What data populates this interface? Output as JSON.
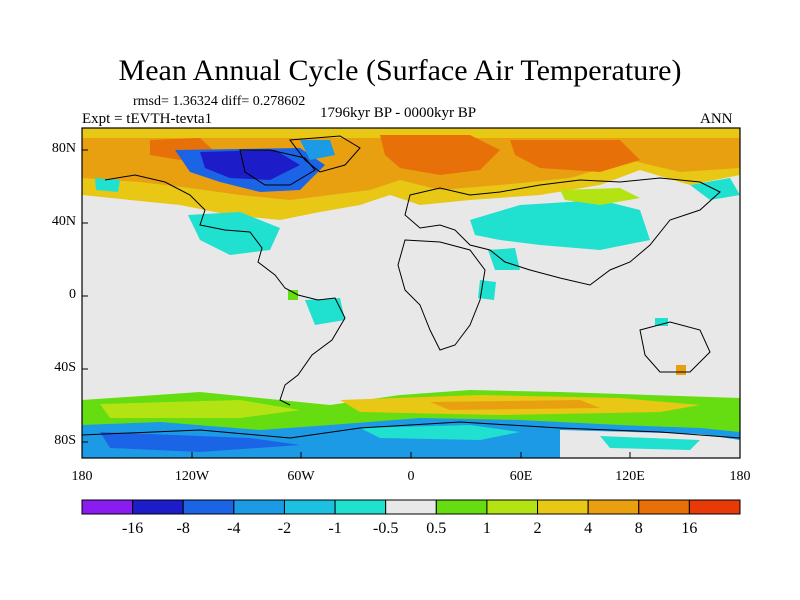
{
  "title": "Mean Annual Cycle (Surface Air Temperature)",
  "stats": "rmsd= 1.36324 diff= 0.278602",
  "experiment": "Expt = tEVTH-tevta1",
  "period": "1796kyr BP - 0000kyr BP",
  "season": "ANN",
  "lat_ticks": [
    "80N",
    "40N",
    "0",
    "40S",
    "80S"
  ],
  "lon_ticks": [
    "180",
    "120W",
    "60W",
    "0",
    "60E",
    "120E",
    "180"
  ],
  "colorbar": {
    "colors": [
      "#8b1cf0",
      "#1c1cc8",
      "#1c64e6",
      "#1c9ae6",
      "#1cc0e0",
      "#20e0d0",
      "#e8e8e8",
      "#66dd11",
      "#b4e314",
      "#e8c814",
      "#e8a010",
      "#e87008",
      "#e83a08"
    ],
    "labels": [
      "-16",
      "-8",
      "-4",
      "-2",
      "-1",
      "-0.5",
      "0.5",
      "1",
      "2",
      "4",
      "8",
      "16"
    ]
  }
}
